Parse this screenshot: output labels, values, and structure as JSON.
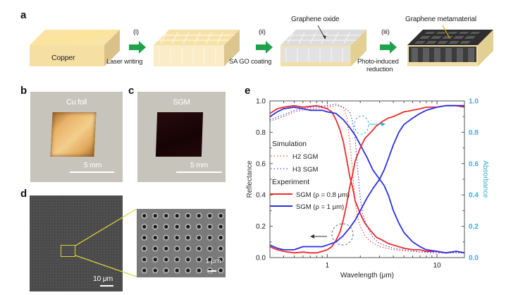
{
  "figure": {
    "panel_labels": [
      "a",
      "b",
      "c",
      "d",
      "e"
    ],
    "panel_a": {
      "steps": [
        {
          "label": "Copper"
        },
        {
          "step": "(i)",
          "process": "Laser writing"
        },
        {
          "step": "(ii)",
          "process": "SA GO coating"
        },
        {
          "step": "(iii)",
          "process_line1": "Photo-induced",
          "process_line2": "reduction"
        }
      ],
      "annotations": {
        "graphene_oxide": "Graphene oxide",
        "graphene_metamaterial": "Graphene metamaterial"
      },
      "colors": {
        "arrow": "#1ea24a",
        "copper": "#f7e3a8",
        "go": "#d9d9d9",
        "metamaterial": "#3a3a3a",
        "annotation_arrow": "#e0a800"
      }
    },
    "panel_b": {
      "title": "Cu foil",
      "scale_bar": "5 mm"
    },
    "panel_c": {
      "title": "SGM",
      "scale_bar": "5 mm"
    },
    "panel_d": {
      "scale_bar_main": "10 μm",
      "scale_bar_inset": "1 μm",
      "highlight_color": "#d9d33a"
    }
  },
  "chart_data": {
    "type": "line",
    "title": "",
    "xlabel": "Wavelength (μm)",
    "ylabel": "Reflectance",
    "y2label": "Absorbance",
    "xscale": "log",
    "xlim": [
      0.3,
      17.8
    ],
    "ylim": [
      0,
      1
    ],
    "y2lim": [
      0,
      1
    ],
    "xticks": [
      {
        "v": 1,
        "label": "1"
      },
      {
        "v": 10,
        "label": "10"
      }
    ],
    "yticks": [
      "0.0",
      "0.2",
      "0.4",
      "0.6",
      "0.8",
      "1.0"
    ],
    "y2ticks": [
      "0.0",
      "0.2",
      "0.4",
      "0.6",
      "0.8",
      "1.0"
    ],
    "colors": {
      "red": "#ee2a2a",
      "blue": "#2b2fe6",
      "absorbance_axis": "#3ab0d8"
    },
    "legend": {
      "position": "left",
      "simulation_header": "Simulation",
      "experiment_header": "Experiment",
      "entries": [
        {
          "label": "H2 SGM",
          "style": "dotted",
          "color": "red"
        },
        {
          "label": "H3 SGM",
          "style": "dotted",
          "color": "blue"
        },
        {
          "label": "SGM (ρ = 0.8 μm)",
          "style": "solid",
          "color": "red"
        },
        {
          "label": "SGM (ρ = 1 μm)",
          "style": "solid",
          "color": "blue"
        }
      ]
    },
    "series": [
      {
        "name": "Exp SGM p=0.8 reflectance",
        "color": "red",
        "style": "solid",
        "axis": "left",
        "x": [
          0.3,
          0.35,
          0.4,
          0.5,
          0.6,
          0.7,
          0.8,
          0.9,
          1.0,
          1.1,
          1.2,
          1.3,
          1.4,
          1.5,
          1.6,
          1.7,
          1.8,
          2.0,
          2.2,
          2.5,
          2.8,
          3.2,
          3.6,
          4.0,
          5,
          6,
          7,
          8,
          10,
          12,
          15,
          17.8
        ],
        "y": [
          0.92,
          0.95,
          0.96,
          0.97,
          0.96,
          0.965,
          0.97,
          0.96,
          0.95,
          0.93,
          0.88,
          0.82,
          0.74,
          0.63,
          0.52,
          0.45,
          0.36,
          0.28,
          0.22,
          0.17,
          0.13,
          0.11,
          0.09,
          0.08,
          0.06,
          0.05,
          0.05,
          0.04,
          0.04,
          0.03,
          0.04,
          0.03
        ]
      },
      {
        "name": "Exp SGM p=1 reflectance",
        "color": "blue",
        "style": "solid",
        "axis": "left",
        "x": [
          0.3,
          0.35,
          0.4,
          0.5,
          0.6,
          0.7,
          0.8,
          0.9,
          1.0,
          1.2,
          1.4,
          1.6,
          1.8,
          2.0,
          2.3,
          2.6,
          3.0,
          3.3,
          3.6,
          4.0,
          4.5,
          5,
          6,
          7,
          8,
          10,
          12,
          15,
          17.8
        ],
        "y": [
          0.9,
          0.93,
          0.95,
          0.96,
          0.95,
          0.94,
          0.94,
          0.94,
          0.93,
          0.92,
          0.88,
          0.83,
          0.78,
          0.72,
          0.64,
          0.56,
          0.5,
          0.46,
          0.4,
          0.3,
          0.22,
          0.16,
          0.1,
          0.07,
          0.05,
          0.04,
          0.03,
          0.04,
          0.03
        ]
      },
      {
        "name": "Exp SGM p=0.8 absorbance",
        "color": "red",
        "style": "solid",
        "axis": "right",
        "x": [
          0.3,
          0.35,
          0.4,
          0.5,
          0.6,
          0.7,
          0.8,
          0.9,
          1.0,
          1.1,
          1.2,
          1.3,
          1.4,
          1.5,
          1.6,
          1.7,
          1.8,
          2.0,
          2.2,
          2.5,
          2.8,
          3.2,
          3.6,
          4.0,
          5,
          6,
          7,
          8,
          10,
          12,
          15,
          17.8
        ],
        "y": [
          0.07,
          0.05,
          0.04,
          0.03,
          0.035,
          0.03,
          0.03,
          0.04,
          0.05,
          0.07,
          0.11,
          0.16,
          0.24,
          0.34,
          0.45,
          0.53,
          0.62,
          0.7,
          0.76,
          0.8,
          0.84,
          0.87,
          0.89,
          0.9,
          0.93,
          0.94,
          0.95,
          0.96,
          0.96,
          0.97,
          0.97,
          0.96
        ]
      },
      {
        "name": "Exp SGM p=1 absorbance",
        "color": "blue",
        "style": "solid",
        "axis": "right",
        "x": [
          0.3,
          0.35,
          0.4,
          0.5,
          0.6,
          0.7,
          0.8,
          0.9,
          1.0,
          1.2,
          1.4,
          1.6,
          1.8,
          2.0,
          2.3,
          2.6,
          3.0,
          3.3,
          3.6,
          4.0,
          4.5,
          5,
          6,
          7,
          8,
          10,
          12,
          15,
          17.8
        ],
        "y": [
          0.08,
          0.06,
          0.05,
          0.05,
          0.07,
          0.07,
          0.07,
          0.07,
          0.08,
          0.1,
          0.14,
          0.19,
          0.24,
          0.3,
          0.38,
          0.44,
          0.5,
          0.56,
          0.63,
          0.72,
          0.8,
          0.85,
          0.89,
          0.92,
          0.94,
          0.96,
          0.97,
          0.97,
          0.97
        ]
      },
      {
        "name": "Sim H2 SGM reflectance",
        "color": "red",
        "style": "dotted",
        "axis": "left",
        "x": [
          0.3,
          0.4,
          0.5,
          0.7,
          1.0,
          1.2,
          1.4,
          1.5,
          1.6,
          1.7,
          1.8,
          1.9,
          2.0,
          2.2,
          2.5,
          3,
          4,
          6,
          10,
          17.8
        ],
        "y": [
          0.87,
          0.9,
          0.93,
          0.95,
          0.96,
          0.97,
          0.96,
          0.9,
          0.75,
          0.55,
          0.35,
          0.25,
          0.2,
          0.14,
          0.1,
          0.07,
          0.05,
          0.04,
          0.03,
          0.03
        ]
      },
      {
        "name": "Sim H3 SGM reflectance",
        "color": "blue",
        "style": "dotted",
        "axis": "left",
        "x": [
          0.3,
          0.4,
          0.5,
          0.7,
          1.0,
          1.2,
          1.4,
          1.6,
          1.7,
          1.8,
          1.9,
          2.0,
          2.1,
          2.3,
          2.6,
          3,
          4,
          6,
          10,
          17.8
        ],
        "y": [
          0.88,
          0.91,
          0.94,
          0.96,
          0.97,
          0.98,
          0.96,
          0.93,
          0.87,
          0.75,
          0.55,
          0.38,
          0.28,
          0.2,
          0.13,
          0.09,
          0.06,
          0.04,
          0.03,
          0.03
        ]
      }
    ],
    "annotations": [
      {
        "type": "arrow",
        "direction": "left",
        "target_axis": "left",
        "at_x": 1.35,
        "at_y": 0.07
      },
      {
        "type": "arrow",
        "direction": "right",
        "target_axis": "right",
        "at_x": 2.0,
        "at_y": 0.86
      }
    ]
  }
}
